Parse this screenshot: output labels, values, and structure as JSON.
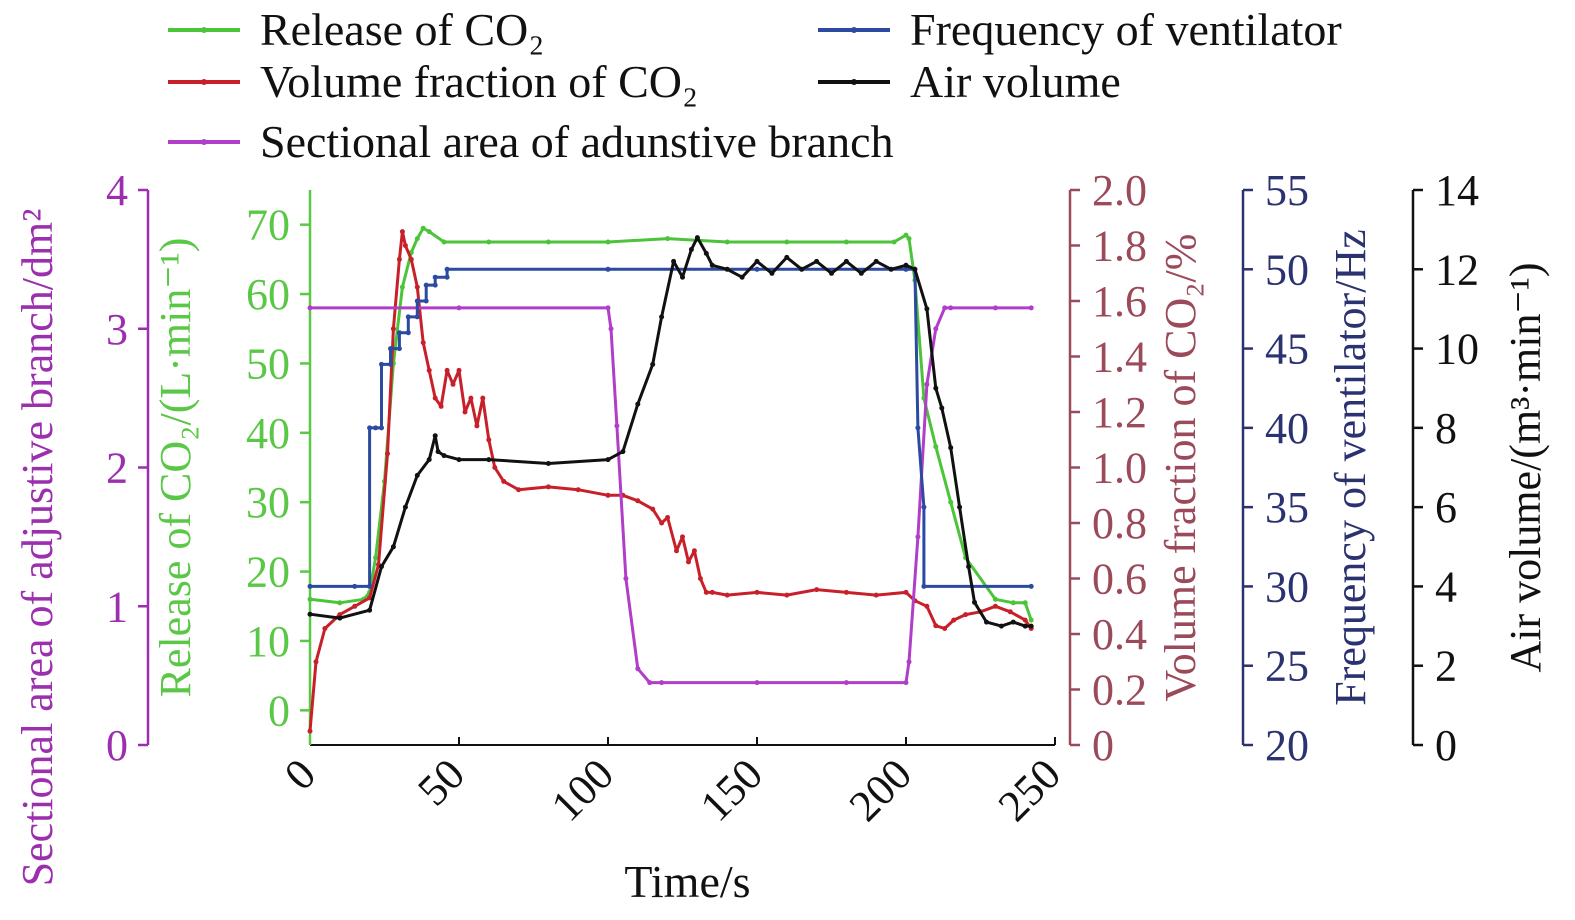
{
  "chart_data": {
    "type": "line",
    "xlabel": "Time/s",
    "xlim": [
      0,
      250
    ],
    "xticks": [
      "0",
      "50",
      "100",
      "150",
      "200",
      "250"
    ],
    "grid": false,
    "legend_position": "top",
    "axes": [
      {
        "id": "area",
        "label": "Sectional area of adjustive branch/dm²",
        "color": "#9b2fae",
        "range": [
          0,
          4
        ],
        "ticks": [
          "0",
          "1",
          "2",
          "3",
          "4"
        ],
        "position": "left-outer"
      },
      {
        "id": "release",
        "label": "Release of CO₂/(L·min⁻¹)",
        "color": "#5ac846",
        "range": [
          -5,
          75
        ],
        "ticks": [
          "0",
          "10",
          "20",
          "30",
          "40",
          "50",
          "60",
          "70"
        ],
        "position": "left-inner"
      },
      {
        "id": "fraction",
        "label": "Volume fraction of CO₂/%",
        "color": "#9b4a5a",
        "range": [
          0,
          2
        ],
        "ticks": [
          "0",
          "0.2",
          "0.4",
          "0.6",
          "0.8",
          "1.0",
          "1.2",
          "1.4",
          "1.6",
          "1.8",
          "2.0"
        ],
        "position": "right-1"
      },
      {
        "id": "freq",
        "label": "Frequency of ventilator/Hz",
        "color": "#2b3270",
        "range": [
          20,
          55
        ],
        "ticks": [
          "20",
          "25",
          "30",
          "35",
          "40",
          "45",
          "50",
          "55"
        ],
        "position": "right-2"
      },
      {
        "id": "air",
        "label": "Air volume/(m³·min⁻¹)",
        "color": "#111111",
        "range": [
          0,
          14
        ],
        "ticks": [
          "0",
          "2",
          "4",
          "6",
          "8",
          "10",
          "12",
          "14"
        ],
        "position": "right-3"
      }
    ],
    "legend": [
      "Release of CO₂",
      "Volume fraction of CO₂",
      "Sectional area of adunstive branch",
      "Frequency of ventilator",
      "Air volume"
    ],
    "series": [
      {
        "name": "Release of CO₂",
        "axis": "release",
        "color": "#4cc43a",
        "x": [
          0,
          10,
          18,
          20,
          22,
          25,
          28,
          31,
          34,
          36,
          38,
          40,
          45,
          60,
          80,
          100,
          120,
          140,
          160,
          180,
          196,
          200,
          201,
          203,
          206,
          210,
          215,
          220,
          230,
          236,
          240,
          242
        ],
        "y": [
          16,
          15.5,
          16,
          17,
          22,
          33,
          50,
          61,
          66,
          68,
          69.5,
          69,
          67.5,
          67.5,
          67.5,
          67.5,
          68,
          67.5,
          67.5,
          67.5,
          67.5,
          68.5,
          68,
          62,
          45,
          38,
          30,
          22,
          16,
          15.5,
          15.5,
          13
        ]
      },
      {
        "name": "Volume fraction of CO₂",
        "axis": "fraction",
        "color": "#c8202a",
        "x": [
          0,
          2,
          5,
          10,
          15,
          20,
          23,
          26,
          28,
          30,
          31,
          32,
          34,
          36,
          38,
          40,
          42,
          44,
          46,
          48,
          50,
          52,
          54,
          56,
          58,
          60,
          62,
          65,
          70,
          80,
          90,
          100,
          105,
          110,
          115,
          118,
          120,
          123,
          125,
          127,
          129,
          131,
          133,
          135,
          140,
          150,
          160,
          170,
          180,
          190,
          200,
          203,
          207,
          210,
          213,
          216,
          220,
          225,
          230,
          235,
          240,
          242
        ],
        "y": [
          0.05,
          0.3,
          0.42,
          0.47,
          0.5,
          0.53,
          0.65,
          1.05,
          1.5,
          1.75,
          1.85,
          1.8,
          1.75,
          1.65,
          1.45,
          1.35,
          1.25,
          1.22,
          1.35,
          1.3,
          1.35,
          1.2,
          1.25,
          1.15,
          1.25,
          1.1,
          1.0,
          0.95,
          0.92,
          0.93,
          0.92,
          0.9,
          0.9,
          0.88,
          0.85,
          0.8,
          0.82,
          0.7,
          0.75,
          0.66,
          0.7,
          0.6,
          0.55,
          0.55,
          0.54,
          0.55,
          0.54,
          0.56,
          0.55,
          0.54,
          0.55,
          0.52,
          0.5,
          0.43,
          0.42,
          0.45,
          0.47,
          0.48,
          0.5,
          0.48,
          0.45,
          0.42
        ]
      },
      {
        "name": "Sectional area of adunstive branch",
        "axis": "area",
        "color": "#b03ec8",
        "x": [
          0,
          50,
          100,
          101,
          103,
          106,
          110,
          114,
          118,
          150,
          180,
          200,
          201,
          204,
          207,
          210,
          213,
          215,
          230,
          242
        ],
        "y": [
          3.15,
          3.15,
          3.15,
          3.0,
          2.3,
          1.2,
          0.55,
          0.45,
          0.45,
          0.45,
          0.45,
          0.45,
          0.6,
          1.5,
          2.6,
          3.0,
          3.15,
          3.15,
          3.15,
          3.15
        ]
      },
      {
        "name": "Frequency of ventilator",
        "axis": "freq",
        "color": "#2b4aa0",
        "x": [
          0,
          15,
          20,
          20,
          22,
          24,
          24,
          27,
          27,
          30,
          30,
          33,
          33,
          36,
          36,
          39,
          39,
          42,
          42,
          46,
          46,
          100,
          150,
          200,
          203,
          204,
          206,
          206,
          242
        ],
        "y": [
          30,
          30,
          30,
          40,
          40,
          40,
          44,
          44,
          45,
          45,
          46,
          46,
          47,
          47,
          48,
          48,
          49,
          49,
          49.5,
          49.5,
          50,
          50,
          50,
          50,
          50,
          40,
          35,
          30,
          30
        ]
      },
      {
        "name": "Air volume",
        "axis": "air",
        "color": "#111111",
        "x": [
          0,
          10,
          20,
          24,
          28,
          32,
          36,
          40,
          42,
          43,
          45,
          50,
          60,
          80,
          100,
          105,
          110,
          115,
          118,
          122,
          125,
          128,
          130,
          133,
          135,
          140,
          145,
          150,
          155,
          160,
          165,
          170,
          175,
          180,
          185,
          190,
          195,
          200,
          203,
          207,
          210,
          212,
          215,
          218,
          221,
          223,
          227,
          232,
          236,
          240,
          242
        ],
        "y": [
          3.3,
          3.2,
          3.4,
          4.5,
          5.0,
          6.0,
          6.8,
          7.2,
          7.8,
          7.4,
          7.3,
          7.2,
          7.2,
          7.1,
          7.2,
          7.4,
          8.6,
          9.6,
          10.8,
          12.2,
          11.8,
          12.5,
          12.8,
          12.4,
          12.1,
          12.0,
          11.8,
          12.2,
          11.9,
          12.3,
          12.0,
          12.2,
          11.9,
          12.2,
          11.9,
          12.2,
          12.0,
          12.1,
          12.0,
          11.0,
          9.0,
          8.5,
          7.5,
          6.0,
          4.5,
          3.6,
          3.1,
          3.0,
          3.1,
          3.0,
          3.0
        ]
      }
    ]
  }
}
